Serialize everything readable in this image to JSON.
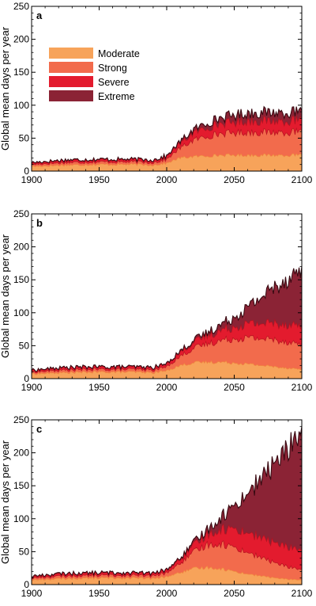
{
  "figure": {
    "ylabel": "Global mean days per year"
  },
  "legend": {
    "entries": [
      {
        "key": "moderate",
        "label": "Moderate",
        "color": "#F7A35A"
      },
      {
        "key": "strong",
        "label": "Strong",
        "color": "#F26B4C"
      },
      {
        "key": "severe",
        "label": "Severe",
        "color": "#E31B2E"
      },
      {
        "key": "extreme",
        "label": "Extreme",
        "color": "#8B2335"
      }
    ]
  },
  "chart_data": [
    {
      "type": "area",
      "stacked": true,
      "panel_label": "a",
      "title": "",
      "xlabel": "",
      "ylabel": "Global mean days per year",
      "xlim": [
        1900,
        2100
      ],
      "ylim": [
        0,
        250
      ],
      "xticks": [
        1900,
        1950,
        2000,
        2050,
        2100
      ],
      "yticks": [
        0,
        50,
        100,
        150,
        200,
        250
      ],
      "grid": false,
      "legend_position": "top-left",
      "x": [
        1900,
        1925,
        1950,
        1975,
        1990,
        2000,
        2010,
        2020,
        2030,
        2040,
        2050,
        2060,
        2070,
        2080,
        2090,
        2100
      ],
      "series": [
        {
          "name": "Moderate",
          "color": "#F7A35A",
          "values": [
            7,
            9,
            10,
            10,
            9,
            12,
            20,
            22,
            23,
            24,
            24,
            24,
            24,
            24,
            24,
            24
          ]
        },
        {
          "name": "Strong",
          "color": "#F26B4C",
          "values": [
            3,
            4,
            4,
            4,
            4,
            6,
            15,
            25,
            30,
            33,
            34,
            35,
            35,
            35,
            35,
            35
          ]
        },
        {
          "name": "Severe",
          "color": "#E31B2E",
          "values": [
            2,
            3,
            3,
            3,
            3,
            4,
            7,
            11,
            13,
            15,
            16,
            17,
            17,
            17,
            17,
            17
          ]
        },
        {
          "name": "Extreme",
          "color": "#8B2335",
          "values": [
            1,
            1,
            1,
            1,
            1,
            1,
            3,
            5,
            7,
            9,
            11,
            12,
            13,
            13,
            13,
            13
          ]
        }
      ]
    },
    {
      "type": "area",
      "stacked": true,
      "panel_label": "b",
      "title": "",
      "xlabel": "",
      "ylabel": "Global mean days per year",
      "xlim": [
        1900,
        2100
      ],
      "ylim": [
        0,
        250
      ],
      "xticks": [
        1900,
        1950,
        2000,
        2050,
        2100
      ],
      "yticks": [
        0,
        50,
        100,
        150,
        200,
        250
      ],
      "grid": false,
      "x": [
        1900,
        1925,
        1950,
        1975,
        1990,
        2000,
        2010,
        2020,
        2030,
        2040,
        2050,
        2060,
        2070,
        2080,
        2090,
        2100
      ],
      "series": [
        {
          "name": "Moderate",
          "color": "#F7A35A",
          "values": [
            7,
            9,
            10,
            10,
            9,
            12,
            20,
            24,
            25,
            25,
            24,
            22,
            20,
            18,
            16,
            14
          ]
        },
        {
          "name": "Strong",
          "color": "#F26B4C",
          "values": [
            3,
            4,
            4,
            4,
            4,
            6,
            14,
            22,
            28,
            33,
            37,
            40,
            41,
            41,
            40,
            38
          ]
        },
        {
          "name": "Severe",
          "color": "#E31B2E",
          "values": [
            2,
            3,
            3,
            3,
            3,
            4,
            6,
            9,
            12,
            15,
            18,
            21,
            23,
            25,
            27,
            28
          ]
        },
        {
          "name": "Extreme",
          "color": "#8B2335",
          "values": [
            1,
            1,
            1,
            1,
            1,
            1,
            2,
            3,
            5,
            9,
            15,
            25,
            40,
            55,
            70,
            85
          ]
        }
      ]
    },
    {
      "type": "area",
      "stacked": true,
      "panel_label": "c",
      "title": "",
      "xlabel": "",
      "ylabel": "Global mean days per year",
      "xlim": [
        1900,
        2100
      ],
      "ylim": [
        0,
        250
      ],
      "xticks": [
        1900,
        1950,
        2000,
        2050,
        2100
      ],
      "yticks": [
        0,
        50,
        100,
        150,
        200,
        250
      ],
      "grid": false,
      "x": [
        1900,
        1925,
        1950,
        1975,
        1990,
        2000,
        2010,
        2020,
        2030,
        2040,
        2050,
        2060,
        2070,
        2080,
        2090,
        2100
      ],
      "series": [
        {
          "name": "Moderate",
          "color": "#F7A35A",
          "values": [
            7,
            9,
            10,
            10,
            9,
            12,
            18,
            24,
            26,
            24,
            20,
            16,
            13,
            10,
            8,
            7
          ]
        },
        {
          "name": "Strong",
          "color": "#F26B4C",
          "values": [
            3,
            4,
            4,
            4,
            4,
            6,
            14,
            25,
            35,
            38,
            37,
            33,
            28,
            23,
            19,
            16
          ]
        },
        {
          "name": "Severe",
          "color": "#E31B2E",
          "values": [
            2,
            3,
            3,
            3,
            3,
            4,
            6,
            10,
            15,
            22,
            28,
            30,
            30,
            30,
            30,
            30
          ]
        },
        {
          "name": "Extreme",
          "color": "#8B2335",
          "values": [
            1,
            1,
            1,
            1,
            1,
            1,
            2,
            4,
            8,
            18,
            35,
            60,
            90,
            120,
            150,
            180
          ]
        }
      ]
    }
  ]
}
